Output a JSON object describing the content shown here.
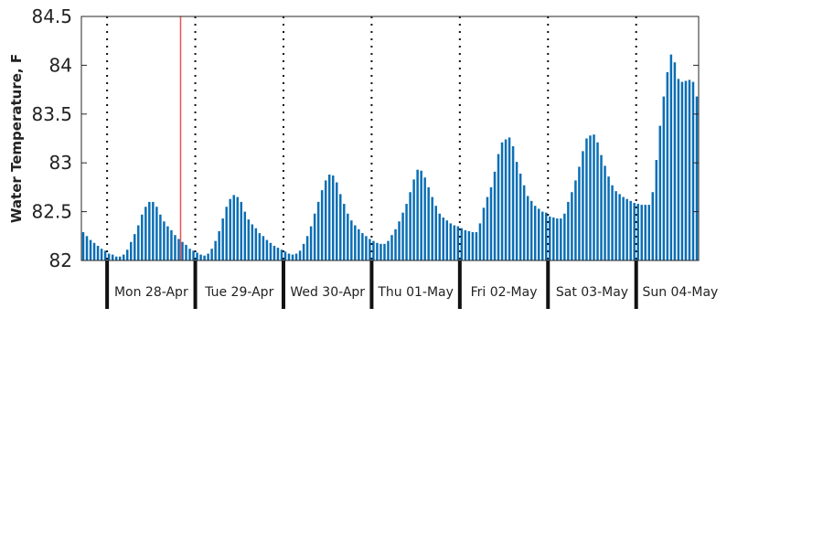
{
  "chart_data": {
    "type": "bar",
    "title": "",
    "xlabel": "",
    "ylabel": "Water Temperature, F",
    "ylim": [
      82,
      84.5
    ],
    "yticks": [
      "82",
      "82.5",
      "83",
      "83.5",
      "84",
      "84.5"
    ],
    "grid": false,
    "bar_color": "#0a6eb4",
    "day_divider_color": "#111111",
    "current_time_line_color": "#f05050",
    "current_time_hour_index": 27,
    "day_labels": [
      "Mon 28-Apr",
      "Tue 29-Apr",
      "Wed 30-Apr",
      "Thu 01-May",
      "Fri 02-May",
      "Sat 03-May",
      "Sun 04-May"
    ],
    "first_day_start_hour_index": 7,
    "series": [
      {
        "values": [
          82.29,
          82.25,
          82.21,
          82.18,
          82.15,
          82.12,
          82.1,
          82.07,
          82.06,
          82.04,
          82.04,
          82.06,
          82.11,
          82.19,
          82.27,
          82.36,
          82.47,
          82.55,
          82.6,
          82.6,
          82.55,
          82.47,
          82.4,
          82.35,
          82.31,
          82.26,
          82.22,
          82.19,
          82.16,
          82.12,
          82.1,
          82.08,
          82.06,
          82.05,
          82.07,
          82.12,
          82.2,
          82.3,
          82.43,
          82.55,
          82.63,
          82.67,
          82.65,
          82.6,
          82.5,
          82.42,
          82.37,
          82.33,
          82.28,
          82.25,
          82.21,
          82.18,
          82.15,
          82.13,
          82.11,
          82.09,
          82.07,
          82.06,
          82.07,
          82.1,
          82.17,
          82.25,
          82.35,
          82.48,
          82.6,
          82.72,
          82.82,
          82.88,
          82.87,
          82.8,
          82.68,
          82.58,
          82.48,
          82.41,
          82.36,
          82.32,
          82.28,
          82.25,
          82.22,
          82.2,
          82.18,
          82.17,
          82.17,
          82.2,
          82.26,
          82.32,
          82.4,
          82.49,
          82.58,
          82.7,
          82.83,
          82.93,
          82.92,
          82.85,
          82.75,
          82.65,
          82.56,
          82.48,
          82.44,
          82.41,
          82.38,
          82.36,
          82.35,
          82.33,
          82.31,
          82.3,
          82.29,
          82.29,
          82.38,
          82.54,
          82.65,
          82.75,
          82.91,
          83.09,
          83.21,
          83.24,
          83.26,
          83.17,
          83.01,
          82.89,
          82.77,
          82.66,
          82.61,
          82.56,
          82.53,
          82.5,
          82.49,
          82.45,
          82.44,
          82.43,
          82.43,
          82.48,
          82.6,
          82.7,
          82.82,
          82.96,
          83.12,
          83.25,
          83.28,
          83.29,
          83.21,
          83.08,
          82.97,
          82.86,
          82.77,
          82.71,
          82.68,
          82.65,
          82.63,
          82.61,
          82.59,
          82.58,
          82.57,
          82.57,
          82.57,
          82.7,
          83.03,
          83.38,
          83.68,
          83.93,
          84.11,
          84.03,
          83.86,
          83.83,
          83.84,
          83.85,
          83.83,
          83.68
        ]
      }
    ]
  }
}
